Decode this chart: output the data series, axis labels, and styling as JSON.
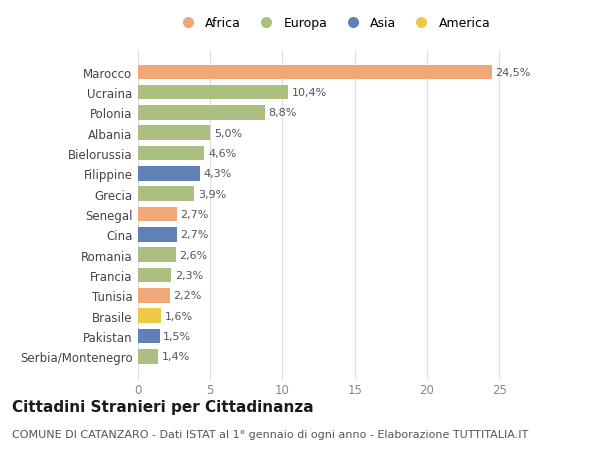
{
  "categories": [
    "Marocco",
    "Ucraina",
    "Polonia",
    "Albania",
    "Bielorussia",
    "Filippine",
    "Grecia",
    "Senegal",
    "Cina",
    "Romania",
    "Francia",
    "Tunisia",
    "Brasile",
    "Pakistan",
    "Serbia/Montenegro"
  ],
  "values": [
    24.5,
    10.4,
    8.8,
    5.0,
    4.6,
    4.3,
    3.9,
    2.7,
    2.7,
    2.6,
    2.3,
    2.2,
    1.6,
    1.5,
    1.4
  ],
  "labels": [
    "24,5%",
    "10,4%",
    "8,8%",
    "5,0%",
    "4,6%",
    "4,3%",
    "3,9%",
    "2,7%",
    "2,7%",
    "2,6%",
    "2,3%",
    "2,2%",
    "1,6%",
    "1,5%",
    "1,4%"
  ],
  "continents": [
    "Africa",
    "Europa",
    "Europa",
    "Europa",
    "Europa",
    "Asia",
    "Europa",
    "Africa",
    "Asia",
    "Europa",
    "Europa",
    "Africa",
    "America",
    "Asia",
    "Europa"
  ],
  "continent_colors": {
    "Africa": "#F0A878",
    "Europa": "#AABF80",
    "Asia": "#6080B8",
    "America": "#F0C848"
  },
  "legend_order": [
    "Africa",
    "Europa",
    "Asia",
    "America"
  ],
  "title": "Cittadini Stranieri per Cittadinanza",
  "subtitle": "COMUNE DI CATANZARO - Dati ISTAT al 1° gennaio di ogni anno - Elaborazione TUTTITALIA.IT",
  "xlim": [
    0,
    27
  ],
  "xticks": [
    0,
    5,
    10,
    15,
    20,
    25
  ],
  "bg_color": "#ffffff",
  "grid_color": "#dddddd",
  "bar_height": 0.72,
  "title_fontsize": 11,
  "subtitle_fontsize": 8,
  "label_fontsize": 8,
  "tick_fontsize": 8.5,
  "legend_fontsize": 9
}
